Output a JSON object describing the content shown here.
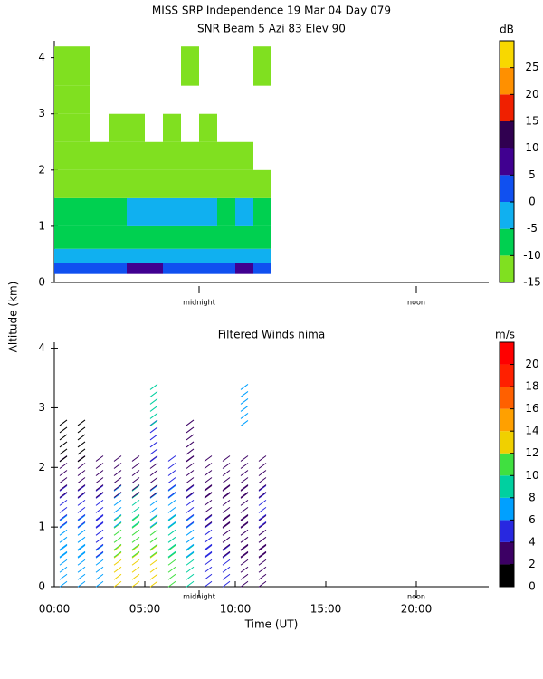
{
  "chart_data": [
    {
      "type": "heatmap",
      "title": "MISS SRP Independence  19 Mar 04 Day 079",
      "subtitle": "SNR Beam 5 Azi  83 Elev 90",
      "y_label": "Altitude (km)",
      "xlim": [
        0,
        24
      ],
      "ylim": [
        0,
        4.3
      ],
      "yticks": [
        0,
        1,
        2,
        3,
        4
      ],
      "x_bins": [
        0,
        1,
        2,
        3,
        4,
        5,
        6,
        7,
        8,
        9,
        10,
        11,
        12
      ],
      "y_bins": [
        0.15,
        0.35,
        0.6,
        1,
        1.5,
        2,
        2.5,
        3,
        3.5,
        4.2
      ],
      "values": [
        [
          2,
          3,
          3,
          2,
          8,
          8,
          3,
          3,
          3,
          2,
          8,
          3
        ],
        [
          -3,
          -2,
          -3,
          -3,
          -2,
          -2,
          -3,
          -2,
          -3,
          -3,
          -3,
          -3
        ],
        [
          -8,
          -8,
          -9,
          -8,
          -7,
          -8,
          -8,
          -8,
          -7,
          -8,
          -8,
          -9
        ],
        [
          -9,
          -9,
          -8,
          -7,
          -4,
          -3,
          -4,
          -3,
          -4,
          -6,
          -4,
          -8
        ],
        [
          -12,
          -12,
          -12,
          -12,
          -11,
          -12,
          -12,
          -11,
          -12,
          -12,
          -12,
          -13
        ],
        [
          -13,
          -12,
          -13,
          -13,
          -12,
          -12,
          -12,
          -13,
          -12,
          -13,
          -13,
          null
        ],
        [
          -13,
          -13,
          null,
          -13,
          -12,
          null,
          -13,
          null,
          -13,
          null,
          null,
          null
        ],
        [
          -13,
          -13,
          null,
          null,
          null,
          null,
          null,
          null,
          null,
          null,
          null,
          null
        ],
        [
          -13,
          -13,
          null,
          null,
          null,
          null,
          null,
          -13,
          null,
          null,
          null,
          -13
        ]
      ],
      "colorbar": {
        "label": "dB",
        "bounds": [
          -15,
          -10,
          -5,
          0,
          5,
          10,
          15,
          20,
          25,
          30
        ],
        "colors": [
          "#80e020",
          "#00d050",
          "#10b0f0",
          "#1050f0",
          "#400090",
          "#300050",
          "#f02000",
          "#ff9000",
          "#f8d800"
        ],
        "ticks": [
          -15,
          -10,
          -5,
          0,
          5,
          10,
          15,
          20,
          25
        ]
      },
      "annotations": [
        {
          "text": "midnight",
          "x": 8
        },
        {
          "text": "noon",
          "x": 20
        }
      ]
    },
    {
      "type": "barbs",
      "title": "Filtered Winds nima",
      "x_label": "Time (UT)",
      "xlim": [
        0,
        24
      ],
      "ylim": [
        0,
        4.1
      ],
      "yticks": [
        0,
        1,
        2,
        3,
        4
      ],
      "xticks": [
        {
          "value": 0,
          "label": "00:00"
        },
        {
          "value": 5,
          "label": "05:00"
        },
        {
          "value": 10,
          "label": "10:00"
        },
        {
          "value": 15,
          "label": "15:00"
        },
        {
          "value": 20,
          "label": "20:00"
        }
      ],
      "times": [
        0.5,
        1.5,
        2.5,
        3.5,
        4.5,
        5.5,
        6.5,
        7.5,
        8.5,
        9.5,
        10.5,
        11.5
      ],
      "altitudes": [
        0.3,
        0.8,
        1.3,
        1.8,
        2.4,
        3.0
      ],
      "speeds": [
        [
          7,
          6,
          6,
          12,
          12,
          12,
          11,
          8,
          5,
          4,
          3,
          3
        ],
        [
          6,
          6,
          5,
          11,
          11,
          10,
          8,
          7,
          4,
          3,
          3,
          3
        ],
        [
          5,
          5,
          4,
          7,
          8,
          7,
          7,
          5,
          3,
          3,
          3,
          4
        ],
        [
          3,
          3,
          3,
          3,
          3,
          3,
          4,
          3,
          3,
          3,
          3,
          3
        ],
        [
          1,
          1,
          null,
          null,
          null,
          5,
          null,
          3,
          null,
          null,
          null,
          null
        ],
        [
          null,
          null,
          null,
          null,
          null,
          9,
          null,
          null,
          null,
          null,
          7,
          null
        ]
      ],
      "colorbar": {
        "label": "m/s",
        "bounds": [
          0,
          2,
          4,
          6,
          8,
          10,
          12,
          14,
          16,
          18,
          20,
          22
        ],
        "colors": [
          "#000000",
          "#3c0064",
          "#2828e0",
          "#00a0ff",
          "#00d0a0",
          "#40e040",
          "#f0d000",
          "#ffa000",
          "#ff6000",
          "#ff2000",
          "#ff0000"
        ],
        "ticks": [
          0,
          2,
          4,
          6,
          8,
          10,
          12,
          14,
          16,
          18,
          20
        ]
      },
      "annotations": [
        {
          "text": "midnight",
          "x": 8
        },
        {
          "text": "noon",
          "x": 20
        }
      ]
    }
  ]
}
